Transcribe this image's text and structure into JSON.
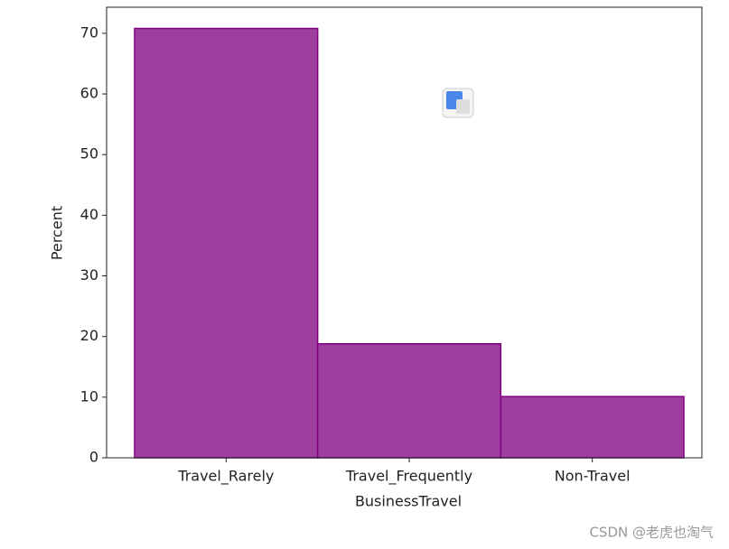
{
  "chart_data": {
    "type": "bar",
    "x_label": "BusinessTravel",
    "y_label": "Percent",
    "categories": [
      "Travel_Rarely",
      "Travel_Frequently",
      "Non-Travel"
    ],
    "values": [
      70.8,
      18.8,
      10.1
    ],
    "color": "#9e3e9e",
    "edge_color": "#800080",
    "ylim": [
      0,
      74.3
    ],
    "yticks": [
      0,
      10,
      20,
      30,
      40,
      50,
      60,
      70
    ]
  },
  "watermark": "CSDN @老虎也淘气"
}
